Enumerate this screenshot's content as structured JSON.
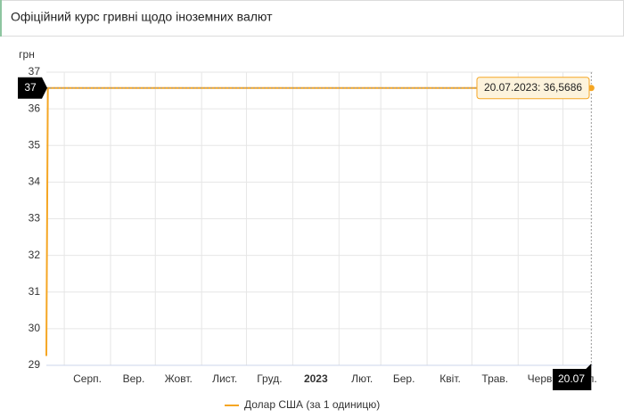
{
  "chart_data": {
    "type": "line",
    "title": "Офіційний курс гривні щодо іноземних валют",
    "y_label": "грн",
    "x": [
      "2022-07-20",
      "2022-07-21",
      "2023-07-20"
    ],
    "series": [
      {
        "name": "Долар США (за 1 одиницю)",
        "color": "#f5a623",
        "values": [
          29.2549,
          36.5686,
          36.5686
        ]
      }
    ],
    "xlim": [
      "2022-07-20",
      "2023-07-21"
    ],
    "xticks": [
      {
        "value": "2022-08-01",
        "label": "Серп."
      },
      {
        "value": "2022-09-01",
        "label": "Вер."
      },
      {
        "value": "2022-10-01",
        "label": "Жовт."
      },
      {
        "value": "2022-11-01",
        "label": "Лист."
      },
      {
        "value": "2022-12-01",
        "label": "Груд."
      },
      {
        "value": "2023-01-01",
        "label": "2023"
      },
      {
        "value": "2023-02-01",
        "label": "Лют."
      },
      {
        "value": "2023-03-01",
        "label": "Бер."
      },
      {
        "value": "2023-04-01",
        "label": "Квіт."
      },
      {
        "value": "2023-05-01",
        "label": "Трав."
      },
      {
        "value": "2023-06-01",
        "label": "Черв."
      },
      {
        "value": "2023-07-01",
        "label": "Лип."
      }
    ],
    "ylim": [
      29,
      37
    ],
    "yticks": [
      29,
      30,
      31,
      32,
      33,
      34,
      35,
      36,
      37
    ],
    "grid": true,
    "legend": "bottom",
    "tooltip": "20.07.2023: 36,5686",
    "crosshair_y_label": "37",
    "crosshair_x_label": "20.07"
  }
}
